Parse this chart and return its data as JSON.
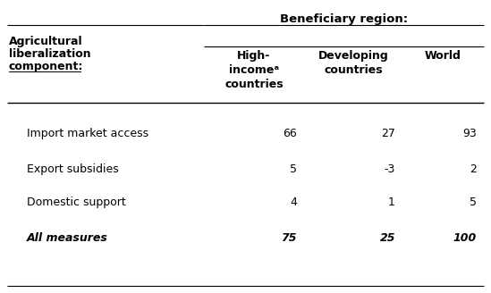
{
  "beneficiary_header": "Beneficiary region:",
  "col_headers": [
    "High-\nincomeᵃ\ncountries",
    "Developing\ncountries",
    "World"
  ],
  "row_labels": [
    "Import market access",
    "Export subsidies",
    "Domestic support",
    "All measures"
  ],
  "row_bold": [
    false,
    false,
    false,
    true
  ],
  "values": [
    [
      "66",
      "27",
      "93"
    ],
    [
      "5",
      "-3",
      "2"
    ],
    [
      "4",
      "1",
      "5"
    ],
    [
      "75",
      "25",
      "100"
    ]
  ],
  "left_header_lines": [
    "Agricultural",
    "liberalization",
    "component:"
  ],
  "bg_color": "#ffffff",
  "text_color": "#000000",
  "font_size": 9.0,
  "header_font_size": 9.5
}
